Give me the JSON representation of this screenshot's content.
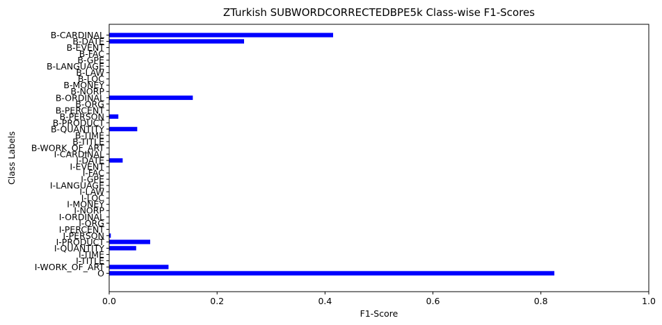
{
  "chart_data": {
    "type": "bar",
    "orientation": "horizontal",
    "title": "ZTurkish SUBWORDCORRECTEDBPE5k Class-wise F1-Scores",
    "xlabel": "F1-Score",
    "ylabel": "Class Labels",
    "xlim": [
      0,
      1.0
    ],
    "xticks": [
      "0.0",
      "0.2",
      "0.4",
      "0.6",
      "0.8",
      "1.0"
    ],
    "bar_color": "#0000ff",
    "grid": false,
    "categories": [
      "B-CARDINAL",
      "B-DATE",
      "B-EVENT",
      "B-FAC",
      "B-GPE",
      "B-LANGUAGE",
      "B-LAW",
      "B-LOC",
      "B-MONEY",
      "B-NORP",
      "B-ORDINAL",
      "B-ORG",
      "B-PERCENT",
      "B-PERSON",
      "B-PRODUCT",
      "B-QUANTITY",
      "B-TIME",
      "B-TITLE",
      "B-WORK_OF_ART",
      "I-CARDINAL",
      "I-DATE",
      "I-EVENT",
      "I-FAC",
      "I-GPE",
      "I-LANGUAGE",
      "I-LAW",
      "I-LOC",
      "I-MONEY",
      "I-NORP",
      "I-ORDINAL",
      "I-ORG",
      "I-PERCENT",
      "I-PERSON",
      "I-PRODUCT",
      "I-QUANTITY",
      "I-TIME",
      "I-TITLE",
      "I-WORK_OF_ART",
      "O"
    ],
    "values": [
      0.415,
      0.25,
      0,
      0,
      0,
      0,
      0,
      0,
      0,
      0,
      0.155,
      0,
      0,
      0.017,
      0,
      0.052,
      0,
      0,
      0,
      0,
      0.025,
      0,
      0,
      0,
      0,
      0,
      0,
      0,
      0,
      0,
      0,
      0,
      0.003,
      0.076,
      0.05,
      0,
      0,
      0.11,
      0.825
    ]
  }
}
